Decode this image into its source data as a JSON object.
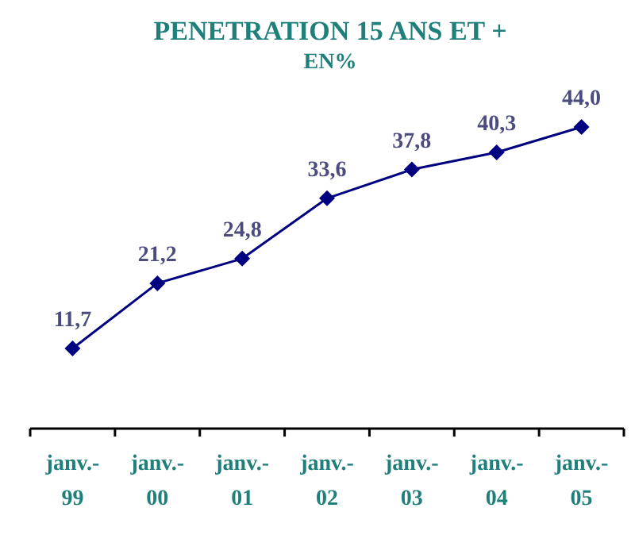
{
  "chart_data": {
    "type": "line",
    "title": "PENETRATION 15 ANS ET +",
    "subtitle": "EN%",
    "categories": [
      "janv.-99",
      "janv.-00",
      "janv.-01",
      "janv.-02",
      "janv.-03",
      "janv.-04",
      "janv.-05"
    ],
    "series": [
      {
        "color": "#000080",
        "values": [
          11.7,
          21.2,
          24.8,
          33.6,
          37.8,
          40.3,
          44.0
        ],
        "value_labels": [
          "11,7",
          "21,2",
          "24,8",
          "33,6",
          "37,8",
          "40,3",
          "44,0"
        ]
      }
    ],
    "marker": "diamond",
    "line_style": "solid"
  }
}
